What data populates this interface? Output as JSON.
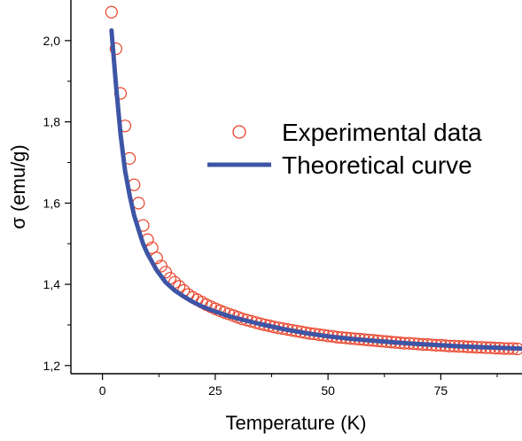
{
  "chart_data": {
    "type": "scatter",
    "xlabel": "Temperature (K)",
    "ylabel": "σ (emu/g)",
    "xlim": [
      -7,
      93
    ],
    "ylim": [
      1.18,
      2.1
    ],
    "x_ticks": [
      0,
      25,
      50,
      75
    ],
    "x_tick_labels": [
      "0",
      "25",
      "50",
      "75"
    ],
    "y_ticks": [
      1.2,
      1.4,
      1.6,
      1.8,
      2.0
    ],
    "y_tick_labels": [
      "1,2",
      "1,4",
      "1,6",
      "1,8",
      "2,0"
    ],
    "grid": false,
    "legend_position": "center-right",
    "legend_entries": [
      "Experimental data",
      "Theoretical curve"
    ],
    "series": [
      {
        "name": "Experimental data",
        "style": "open-circle",
        "color": "#e8432a",
        "x": [
          2,
          3,
          4,
          5,
          6,
          7,
          8,
          9,
          10,
          11,
          12,
          13,
          14,
          15,
          16,
          17,
          18,
          19,
          20,
          21,
          22,
          23,
          24,
          25,
          26,
          27,
          28,
          29,
          30,
          31,
          32,
          33,
          34,
          35,
          36,
          37,
          38,
          39,
          40,
          41,
          42,
          43,
          44,
          45,
          46,
          47,
          48,
          49,
          50,
          51,
          52,
          53,
          54,
          55,
          56,
          57,
          58,
          59,
          60,
          61,
          62,
          63,
          64,
          65,
          66,
          67,
          68,
          69,
          70,
          71,
          72,
          73,
          74,
          75,
          76,
          77,
          78,
          79,
          80,
          81,
          82,
          83,
          84,
          85,
          86,
          87,
          88,
          89,
          90,
          91,
          92
        ],
        "y": [
          2.07,
          1.98,
          1.87,
          1.79,
          1.71,
          1.645,
          1.6,
          1.545,
          1.51,
          1.49,
          1.465,
          1.445,
          1.43,
          1.415,
          1.405,
          1.395,
          1.385,
          1.375,
          1.368,
          1.362,
          1.356,
          1.35,
          1.345,
          1.34,
          1.335,
          1.331,
          1.327,
          1.323,
          1.319,
          1.315,
          1.312,
          1.309,
          1.306,
          1.303,
          1.3,
          1.298,
          1.295,
          1.293,
          1.291,
          1.289,
          1.287,
          1.285,
          1.283,
          1.281,
          1.279,
          1.278,
          1.276,
          1.275,
          1.273,
          1.272,
          1.27,
          1.269,
          1.268,
          1.267,
          1.266,
          1.265,
          1.264,
          1.263,
          1.262,
          1.261,
          1.26,
          1.259,
          1.258,
          1.257,
          1.256,
          1.255,
          1.255,
          1.254,
          1.253,
          1.252,
          1.252,
          1.251,
          1.25,
          1.25,
          1.249,
          1.248,
          1.248,
          1.247,
          1.247,
          1.246,
          1.246,
          1.245,
          1.245,
          1.244,
          1.244,
          1.243,
          1.243,
          1.242,
          1.242,
          1.242,
          1.241
        ]
      },
      {
        "name": "Theoretical curve",
        "style": "line",
        "color": "#3e55a6",
        "x": [
          2,
          3,
          4,
          5,
          6,
          7,
          8,
          9,
          10,
          12,
          14,
          16,
          18,
          20,
          22,
          25,
          28,
          31,
          35,
          40,
          45,
          50,
          55,
          60,
          65,
          70,
          75,
          80,
          85,
          90,
          93
        ],
        "y": [
          2.025,
          1.89,
          1.77,
          1.68,
          1.62,
          1.57,
          1.535,
          1.5,
          1.475,
          1.435,
          1.405,
          1.385,
          1.37,
          1.357,
          1.346,
          1.333,
          1.322,
          1.313,
          1.302,
          1.29,
          1.28,
          1.272,
          1.266,
          1.261,
          1.257,
          1.253,
          1.25,
          1.247,
          1.245,
          1.243,
          1.242
        ]
      }
    ]
  }
}
